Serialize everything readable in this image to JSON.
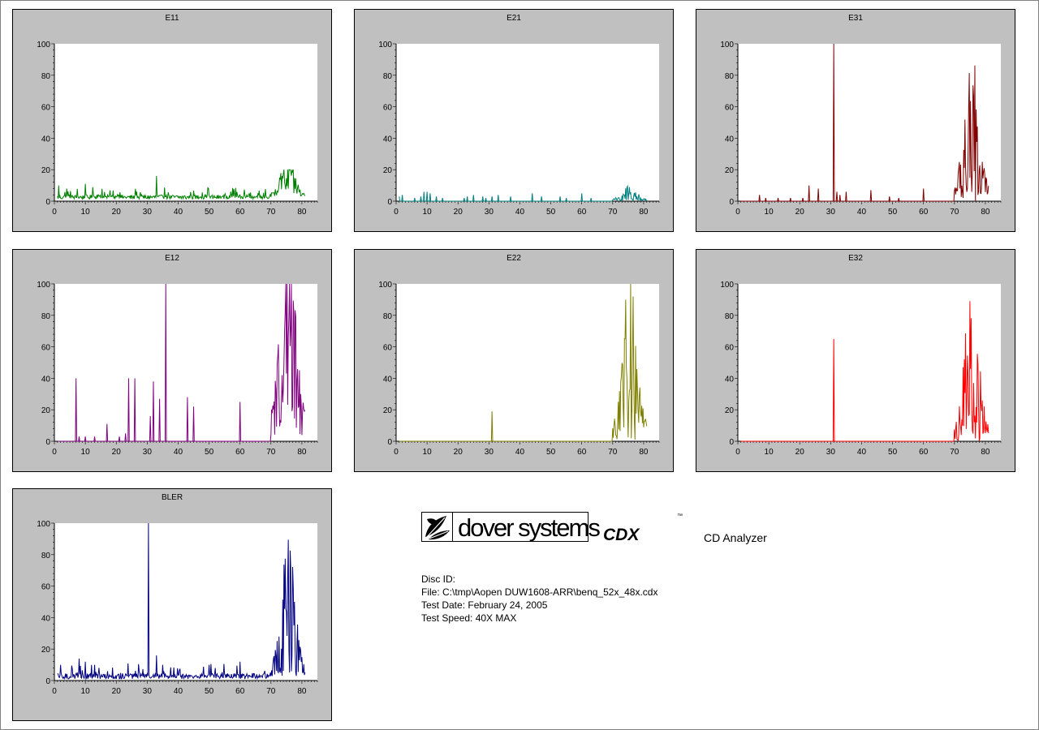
{
  "charts": [
    {
      "id": "e11",
      "title": "E11",
      "color": "#008000",
      "pattern": {
        "base": 2.5,
        "noise": 3,
        "burst": 10,
        "burstMax": 25,
        "peakMax": 20,
        "spikes": [
          [
            1.5,
            10
          ],
          [
            4,
            8
          ],
          [
            10,
            11
          ],
          [
            33,
            16
          ],
          [
            57,
            6
          ],
          [
            60,
            4
          ],
          [
            63,
            5
          ]
        ]
      }
    },
    {
      "id": "e21",
      "title": "E21",
      "color": "#008080",
      "pattern": {
        "base": 0,
        "noise": 0,
        "burst": 3,
        "burstMax": 11,
        "peakMax": 10,
        "spikes": [
          [
            1,
            3
          ],
          [
            2,
            4
          ],
          [
            6,
            2
          ],
          [
            8,
            3
          ],
          [
            9,
            6
          ],
          [
            10,
            6
          ],
          [
            11,
            5
          ],
          [
            13,
            3
          ],
          [
            15,
            2
          ],
          [
            22,
            2
          ],
          [
            23,
            3
          ],
          [
            25,
            4
          ],
          [
            28,
            3
          ],
          [
            29,
            2
          ],
          [
            31,
            3
          ],
          [
            33,
            4
          ],
          [
            37,
            3
          ],
          [
            44,
            5
          ],
          [
            47,
            3
          ],
          [
            53,
            3
          ],
          [
            55,
            2
          ],
          [
            60,
            5
          ],
          [
            63,
            2
          ]
        ]
      }
    },
    {
      "id": "e31",
      "title": "E31",
      "color": "#800000",
      "pattern": {
        "base": 0,
        "noise": 0,
        "burst": 20,
        "burstMax": 100,
        "peakMax": 100,
        "spikes": [
          [
            7,
            4
          ],
          [
            9,
            2
          ],
          [
            13,
            2
          ],
          [
            17,
            2
          ],
          [
            21,
            2
          ],
          [
            23,
            10
          ],
          [
            26,
            8
          ],
          [
            31,
            100
          ],
          [
            32,
            6
          ],
          [
            33,
            4
          ],
          [
            35,
            6
          ],
          [
            43,
            7
          ],
          [
            49,
            3
          ],
          [
            52,
            2
          ],
          [
            60,
            8
          ]
        ]
      }
    },
    {
      "id": "e12",
      "title": "E12",
      "color": "#800080",
      "pattern": {
        "base": 0,
        "noise": 0,
        "burst": 60,
        "burstMax": 100,
        "peakMax": 100,
        "spikes": [
          [
            7,
            40
          ],
          [
            8,
            3
          ],
          [
            10,
            3
          ],
          [
            13,
            3
          ],
          [
            17,
            11
          ],
          [
            21,
            3
          ],
          [
            23,
            5
          ],
          [
            24,
            40
          ],
          [
            26,
            40
          ],
          [
            31,
            16
          ],
          [
            32,
            38
          ],
          [
            34,
            27
          ],
          [
            36,
            100
          ],
          [
            43,
            28
          ],
          [
            45,
            22
          ],
          [
            60,
            25
          ]
        ]
      }
    },
    {
      "id": "e22",
      "title": "E22",
      "color": "#808000",
      "pattern": {
        "base": 0,
        "noise": 0,
        "burst": 30,
        "burstMax": 100,
        "peakMax": 100,
        "spikes": [
          [
            31,
            19
          ]
        ]
      }
    },
    {
      "id": "e32",
      "title": "E32",
      "color": "#ff0000",
      "pattern": {
        "base": 0,
        "noise": 0,
        "burst": 20,
        "burstMax": 100,
        "peakMax": 100,
        "spikes": [
          [
            31,
            65
          ]
        ]
      }
    },
    {
      "id": "bler",
      "title": "BLER",
      "color": "#000080",
      "pattern": {
        "base": 2.5,
        "noise": 4,
        "burst": 15,
        "burstMax": 100,
        "peakMax": 100,
        "spikes": [
          [
            2,
            10
          ],
          [
            8,
            14
          ],
          [
            10,
            12
          ],
          [
            13,
            10
          ],
          [
            30.5,
            100
          ],
          [
            33,
            16
          ],
          [
            35,
            10
          ],
          [
            60,
            12
          ]
        ]
      }
    }
  ],
  "axes": {
    "xlim": [
      0,
      85
    ],
    "ylim": [
      0,
      100
    ],
    "xticks": [
      "0",
      "10",
      "20",
      "30",
      "40",
      "50",
      "60",
      "70",
      "80"
    ],
    "yticks": [
      "0",
      "20",
      "40",
      "60",
      "80",
      "100"
    ]
  },
  "logo": {
    "company": "dover systems",
    "product": "CDX",
    "tm": "™",
    "tagline": "CD Analyzer"
  },
  "info": {
    "disc_id": "Disc ID:",
    "file": "File: C:\\tmp\\Aopen DUW1608-ARR\\benq_52x_48x.cdx",
    "test_date": "Test Date: February 24, 2005",
    "test_speed": "Test Speed: 40X MAX"
  }
}
